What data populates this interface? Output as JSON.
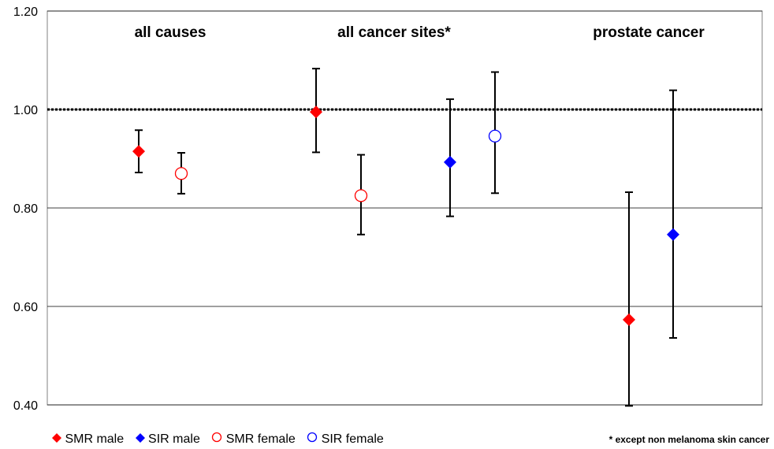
{
  "chart_data": {
    "type": "scatter",
    "ylim": [
      0.4,
      1.2
    ],
    "yticks": [
      "0.40",
      "0.60",
      "0.80",
      "1.00",
      "1.20"
    ],
    "reference_line": 1.0,
    "groups": [
      "all causes",
      "all cancer sites*",
      "prostate cancer"
    ],
    "series": [
      {
        "name": "SMR male",
        "color": "#ff0000",
        "marker": "diamond-filled",
        "points": [
          {
            "group": "all causes",
            "value": 0.915,
            "lower": 0.872,
            "upper": 0.958
          },
          {
            "group": "all cancer sites*",
            "value": 0.995,
            "lower": 0.913,
            "upper": 1.083
          },
          {
            "group": "prostate cancer",
            "value": 0.573,
            "lower": 0.398,
            "upper": 0.832
          }
        ]
      },
      {
        "name": "SIR male",
        "color": "#0000ff",
        "marker": "diamond-filled",
        "points": [
          {
            "group": "all cancer sites*",
            "value": 0.893,
            "lower": 0.783,
            "upper": 1.021
          },
          {
            "group": "prostate cancer",
            "value": 0.746,
            "lower": 0.536,
            "upper": 1.039
          }
        ]
      },
      {
        "name": "SMR female",
        "color": "#ff0000",
        "marker": "circle-open",
        "points": [
          {
            "group": "all causes",
            "value": 0.87,
            "lower": 0.829,
            "upper": 0.912
          },
          {
            "group": "all cancer sites*",
            "value": 0.825,
            "lower": 0.746,
            "upper": 0.908
          }
        ]
      },
      {
        "name": "SIR female",
        "color": "#0000ff",
        "marker": "circle-open",
        "points": [
          {
            "group": "all cancer sites*",
            "value": 0.946,
            "lower": 0.83,
            "upper": 1.076
          }
        ]
      }
    ],
    "grid": true,
    "legend": "bottom-left"
  },
  "footnote": "* except non melanoma skin cancer"
}
